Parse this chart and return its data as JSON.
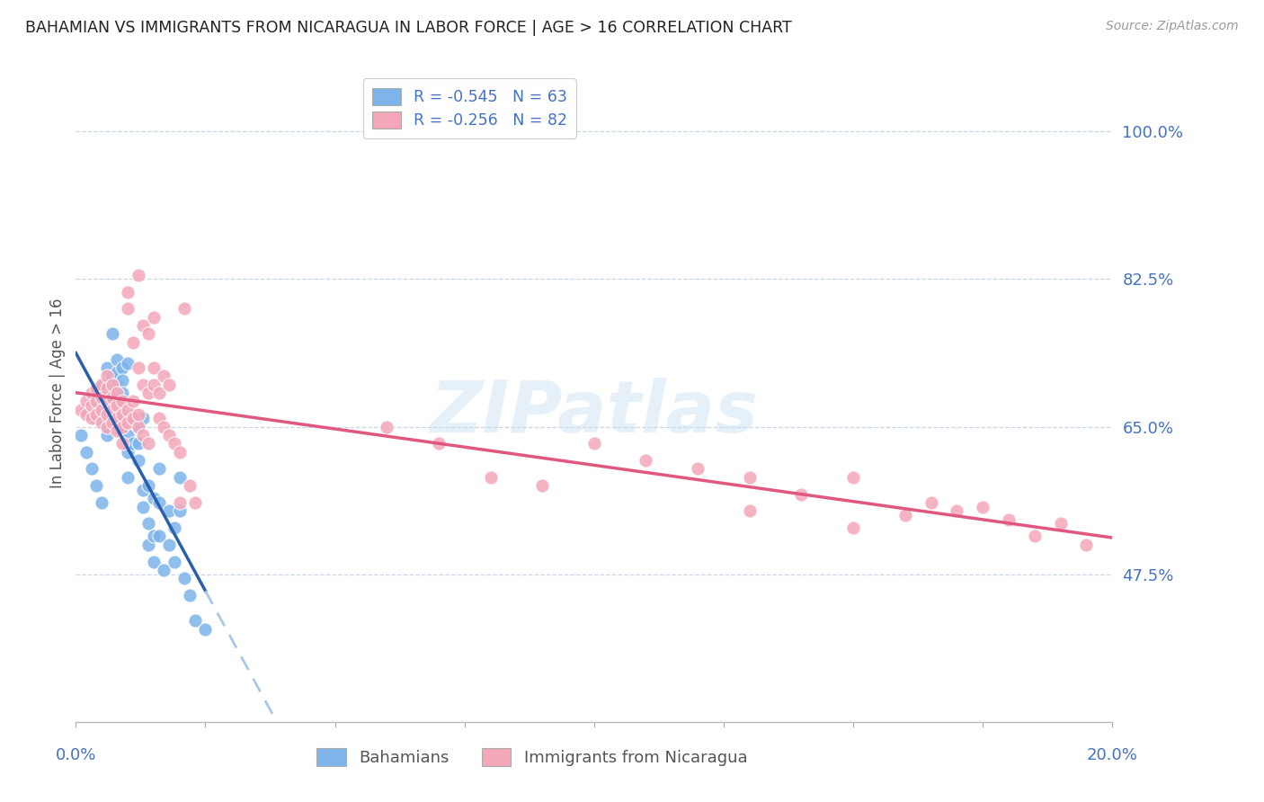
{
  "title": "BAHAMIAN VS IMMIGRANTS FROM NICARAGUA IN LABOR FORCE | AGE > 16 CORRELATION CHART",
  "source": "Source: ZipAtlas.com",
  "ylabel": "In Labor Force | Age > 16",
  "ytick_labels": [
    "100.0%",
    "82.5%",
    "65.0%",
    "47.5%"
  ],
  "ytick_values": [
    1.0,
    0.825,
    0.65,
    0.475
  ],
  "xlim": [
    0.0,
    0.2
  ],
  "ylim": [
    0.3,
    1.08
  ],
  "blue_color": "#7eb4ea",
  "pink_color": "#f4a7b9",
  "blue_line_color": "#2a5fac",
  "pink_line_color": "#e05880",
  "dashed_line_color": "#a8c8e8",
  "legend_blue_label": "R = -0.545   N = 63",
  "legend_pink_label": "R = -0.256   N = 82",
  "bahamians_label": "Bahamians",
  "nicaragua_label": "Immigrants from Nicaragua",
  "watermark": "ZIPatlas",
  "blue_scatter_x": [
    0.002,
    0.003,
    0.004,
    0.004,
    0.005,
    0.005,
    0.005,
    0.006,
    0.006,
    0.006,
    0.006,
    0.007,
    0.007,
    0.007,
    0.007,
    0.008,
    0.008,
    0.008,
    0.008,
    0.008,
    0.009,
    0.009,
    0.009,
    0.009,
    0.01,
    0.01,
    0.01,
    0.01,
    0.011,
    0.011,
    0.012,
    0.012,
    0.012,
    0.013,
    0.013,
    0.013,
    0.014,
    0.014,
    0.014,
    0.015,
    0.015,
    0.015,
    0.016,
    0.016,
    0.016,
    0.017,
    0.018,
    0.018,
    0.019,
    0.019,
    0.02,
    0.02,
    0.021,
    0.022,
    0.023,
    0.025,
    0.001,
    0.002,
    0.003,
    0.004,
    0.005,
    0.006,
    0.007
  ],
  "blue_scatter_y": [
    0.67,
    0.68,
    0.695,
    0.66,
    0.7,
    0.68,
    0.665,
    0.72,
    0.7,
    0.685,
    0.67,
    0.71,
    0.695,
    0.68,
    0.665,
    0.73,
    0.715,
    0.7,
    0.685,
    0.65,
    0.72,
    0.705,
    0.69,
    0.66,
    0.725,
    0.64,
    0.62,
    0.59,
    0.66,
    0.63,
    0.65,
    0.63,
    0.61,
    0.66,
    0.575,
    0.555,
    0.58,
    0.535,
    0.51,
    0.565,
    0.52,
    0.49,
    0.6,
    0.56,
    0.52,
    0.48,
    0.55,
    0.51,
    0.53,
    0.49,
    0.59,
    0.55,
    0.47,
    0.45,
    0.42,
    0.41,
    0.64,
    0.62,
    0.6,
    0.58,
    0.56,
    0.64,
    0.76
  ],
  "pink_scatter_x": [
    0.001,
    0.002,
    0.002,
    0.003,
    0.003,
    0.003,
    0.004,
    0.004,
    0.004,
    0.005,
    0.005,
    0.005,
    0.005,
    0.006,
    0.006,
    0.006,
    0.006,
    0.006,
    0.007,
    0.007,
    0.007,
    0.007,
    0.008,
    0.008,
    0.008,
    0.008,
    0.009,
    0.009,
    0.009,
    0.009,
    0.01,
    0.01,
    0.01,
    0.01,
    0.011,
    0.011,
    0.011,
    0.012,
    0.012,
    0.012,
    0.012,
    0.013,
    0.013,
    0.013,
    0.014,
    0.014,
    0.014,
    0.015,
    0.015,
    0.015,
    0.016,
    0.016,
    0.017,
    0.017,
    0.018,
    0.018,
    0.019,
    0.02,
    0.02,
    0.021,
    0.022,
    0.023,
    0.06,
    0.07,
    0.08,
    0.09,
    0.1,
    0.11,
    0.12,
    0.13,
    0.14,
    0.15,
    0.165,
    0.175,
    0.18,
    0.185,
    0.19,
    0.195,
    0.13,
    0.15,
    0.16,
    0.17
  ],
  "pink_scatter_y": [
    0.67,
    0.68,
    0.665,
    0.69,
    0.675,
    0.66,
    0.695,
    0.68,
    0.665,
    0.7,
    0.685,
    0.67,
    0.655,
    0.71,
    0.695,
    0.68,
    0.665,
    0.65,
    0.7,
    0.685,
    0.67,
    0.655,
    0.69,
    0.675,
    0.66,
    0.645,
    0.68,
    0.665,
    0.65,
    0.63,
    0.67,
    0.655,
    0.79,
    0.81,
    0.66,
    0.68,
    0.75,
    0.65,
    0.665,
    0.72,
    0.83,
    0.64,
    0.7,
    0.77,
    0.63,
    0.69,
    0.76,
    0.72,
    0.78,
    0.7,
    0.66,
    0.69,
    0.65,
    0.71,
    0.64,
    0.7,
    0.63,
    0.62,
    0.56,
    0.79,
    0.58,
    0.56,
    0.65,
    0.63,
    0.59,
    0.58,
    0.63,
    0.61,
    0.6,
    0.59,
    0.57,
    0.59,
    0.56,
    0.555,
    0.54,
    0.52,
    0.535,
    0.51,
    0.55,
    0.53,
    0.545,
    0.55
  ]
}
